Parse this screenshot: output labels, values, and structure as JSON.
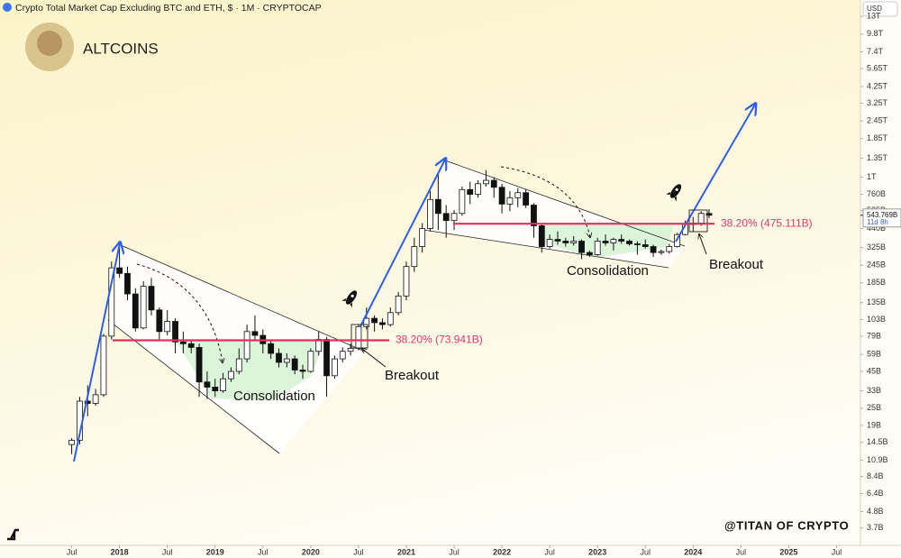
{
  "chart_data": {
    "type": "candlestick",
    "title": "Crypto Total Market Cap Excluding BTC and ETH, $ · 1M · CRYPTOCAP",
    "logo_text": "ALTCOINS",
    "currency": "USD",
    "watermark": "@TITAN OF CRYPTO",
    "annotations": [
      "Consolidation",
      "Breakout",
      "Consolidation",
      "Breakout"
    ],
    "fib_levels": [
      {
        "value": 73.941,
        "label": "38.20% (73.941B)"
      },
      {
        "value": 475.111,
        "label": "38.20% (475.111B)"
      }
    ],
    "last_price": {
      "value": 543.769,
      "label": "543.769B"
    },
    "countdown": "11d 8h",
    "log_scale": true,
    "ylim": [
      2.8,
      16900
    ],
    "yticks": [
      {
        "value": 13000,
        "label": "13T"
      },
      {
        "value": 9800,
        "label": "9.8T"
      },
      {
        "value": 7400,
        "label": "7.4T"
      },
      {
        "value": 5650,
        "label": "5.65T"
      },
      {
        "value": 4250,
        "label": "4.25T"
      },
      {
        "value": 3250,
        "label": "3.25T"
      },
      {
        "value": 2450,
        "label": "2.45T"
      },
      {
        "value": 1850,
        "label": "1.85T"
      },
      {
        "value": 1350,
        "label": "1.35T"
      },
      {
        "value": 1000,
        "label": "1T"
      },
      {
        "value": 760,
        "label": "760B"
      },
      {
        "value": 585,
        "label": "585B"
      },
      {
        "value": 440,
        "label": "440B"
      },
      {
        "value": 325,
        "label": "325B"
      },
      {
        "value": 245,
        "label": "245B"
      },
      {
        "value": 185,
        "label": "185B"
      },
      {
        "value": 135,
        "label": "135B"
      },
      {
        "value": 103,
        "label": "103B"
      },
      {
        "value": 79,
        "label": "79B"
      },
      {
        "value": 59,
        "label": "59B"
      },
      {
        "value": 45,
        "label": "45B"
      },
      {
        "value": 33,
        "label": "33B"
      },
      {
        "value": 25,
        "label": "25B"
      },
      {
        "value": 19,
        "label": "19B"
      },
      {
        "value": 14.5,
        "label": "14.5B"
      },
      {
        "value": 10.9,
        "label": "10.9B"
      },
      {
        "value": 8.4,
        "label": "8.4B"
      },
      {
        "value": 6.4,
        "label": "6.4B"
      },
      {
        "value": 4.8,
        "label": "4.8B"
      },
      {
        "value": 3.7,
        "label": "3.7B"
      }
    ],
    "xlim": [
      "2016-10",
      "2025-10"
    ],
    "xticks": [
      {
        "value": "2017-07",
        "label": "Jul"
      },
      {
        "value": "2018-01",
        "label": "2018"
      },
      {
        "value": "2018-07",
        "label": "Jul"
      },
      {
        "value": "2019-01",
        "label": "2019"
      },
      {
        "value": "2019-07",
        "label": "Jul"
      },
      {
        "value": "2020-01",
        "label": "2020"
      },
      {
        "value": "2020-07",
        "label": "Jul"
      },
      {
        "value": "2021-01",
        "label": "2021"
      },
      {
        "value": "2021-07",
        "label": "Jul"
      },
      {
        "value": "2022-01",
        "label": "2022"
      },
      {
        "value": "2022-07",
        "label": "Jul"
      },
      {
        "value": "2023-01",
        "label": "2023"
      },
      {
        "value": "2023-07",
        "label": "Jul"
      },
      {
        "value": "2024-01",
        "label": "2024"
      },
      {
        "value": "2024-07",
        "label": "Jul"
      },
      {
        "value": "2025-01",
        "label": "2025"
      },
      {
        "value": "2025-07",
        "label": "Jul"
      }
    ],
    "x": [
      "2017-07",
      "2017-08",
      "2017-09",
      "2017-10",
      "2017-11",
      "2017-12",
      "2018-01",
      "2018-02",
      "2018-03",
      "2018-04",
      "2018-05",
      "2018-06",
      "2018-07",
      "2018-08",
      "2018-09",
      "2018-10",
      "2018-11",
      "2018-12",
      "2019-01",
      "2019-02",
      "2019-03",
      "2019-04",
      "2019-05",
      "2019-06",
      "2019-07",
      "2019-08",
      "2019-09",
      "2019-10",
      "2019-11",
      "2019-12",
      "2020-01",
      "2020-02",
      "2020-03",
      "2020-04",
      "2020-05",
      "2020-06",
      "2020-07",
      "2020-08",
      "2020-09",
      "2020-10",
      "2020-11",
      "2020-12",
      "2021-01",
      "2021-02",
      "2021-03",
      "2021-04",
      "2021-05",
      "2021-06",
      "2021-07",
      "2021-08",
      "2021-09",
      "2021-10",
      "2021-11",
      "2021-12",
      "2022-01",
      "2022-02",
      "2022-03",
      "2022-04",
      "2022-05",
      "2022-06",
      "2022-07",
      "2022-08",
      "2022-09",
      "2022-10",
      "2022-11",
      "2022-12",
      "2023-01",
      "2023-02",
      "2023-03",
      "2023-04",
      "2023-05",
      "2023-06",
      "2023-07",
      "2023-08",
      "2023-09",
      "2023-10",
      "2023-11",
      "2023-12",
      "2024-01",
      "2024-02",
      "2024-03"
    ],
    "open": [
      14,
      15,
      28,
      27,
      31,
      79,
      235,
      215,
      155,
      90,
      175,
      120,
      85,
      100,
      72,
      70,
      66,
      38,
      35,
      33,
      40,
      45,
      55,
      85,
      80,
      70,
      60,
      52,
      55,
      46,
      45,
      62,
      75,
      42,
      55,
      62,
      65,
      92,
      105,
      98,
      95,
      115,
      150,
      240,
      330,
      440,
      700,
      560,
      500,
      560,
      820,
      760,
      900,
      950,
      850,
      650,
      720,
      780,
      640,
      460,
      330,
      370,
      360,
      350,
      360,
      300,
      290,
      360,
      350,
      370,
      360,
      345,
      340,
      330,
      300,
      305,
      330,
      400,
      470,
      480,
      560
    ],
    "high": [
      15.5,
      30,
      36,
      34,
      82,
      260,
      350,
      240,
      170,
      190,
      200,
      125,
      120,
      105,
      85,
      75,
      70,
      45,
      40,
      44,
      48,
      65,
      95,
      110,
      88,
      75,
      65,
      60,
      58,
      50,
      65,
      85,
      78,
      58,
      66,
      70,
      95,
      125,
      110,
      105,
      125,
      160,
      260,
      380,
      480,
      800,
      1050,
      640,
      590,
      860,
      930,
      950,
      1120,
      1000,
      900,
      800,
      840,
      820,
      660,
      480,
      400,
      420,
      380,
      390,
      370,
      310,
      380,
      400,
      380,
      400,
      370,
      360,
      370,
      340,
      315,
      345,
      410,
      500,
      530,
      580,
      600
    ],
    "low": [
      12,
      14,
      22,
      26,
      30,
      75,
      200,
      140,
      85,
      88,
      110,
      75,
      80,
      60,
      60,
      60,
      30,
      29,
      30,
      32,
      38,
      43,
      52,
      75,
      60,
      55,
      48,
      48,
      43,
      40,
      44,
      58,
      30,
      40,
      52,
      58,
      63,
      88,
      85,
      88,
      92,
      110,
      140,
      220,
      300,
      420,
      430,
      380,
      430,
      540,
      650,
      720,
      860,
      720,
      560,
      580,
      620,
      610,
      380,
      300,
      320,
      340,
      330,
      335,
      270,
      280,
      285,
      335,
      310,
      345,
      335,
      290,
      320,
      280,
      290,
      295,
      325,
      395,
      420,
      460,
      520
    ],
    "close": [
      15,
      28,
      27,
      31,
      79,
      235,
      215,
      155,
      90,
      175,
      120,
      85,
      100,
      72,
      70,
      66,
      38,
      35,
      33,
      40,
      45,
      55,
      85,
      80,
      70,
      60,
      52,
      55,
      46,
      45,
      62,
      75,
      42,
      55,
      62,
      65,
      92,
      105,
      98,
      95,
      115,
      150,
      240,
      330,
      440,
      700,
      560,
      500,
      560,
      820,
      760,
      900,
      950,
      850,
      650,
      720,
      780,
      640,
      460,
      330,
      370,
      360,
      350,
      360,
      300,
      290,
      360,
      350,
      370,
      360,
      345,
      340,
      330,
      300,
      305,
      330,
      400,
      470,
      480,
      560,
      544
    ]
  }
}
